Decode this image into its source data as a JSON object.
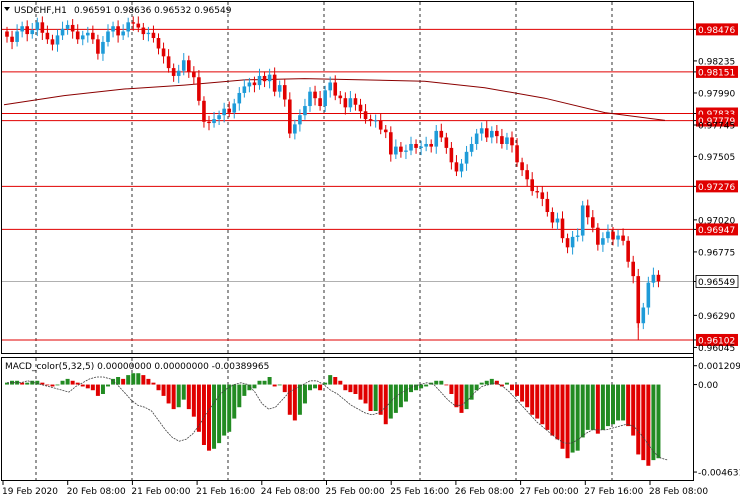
{
  "header": {
    "symbol": "USDCHF,H1",
    "ohlc": "0.96591 0.98636 0.96532 0.96549"
  },
  "macd_header": {
    "label": "MACD_color(5,32,5) 0.00000000 0.00000000 -0.00389965"
  },
  "colors": {
    "bull": "#1e9bd8",
    "bear": "#e00000",
    "hline": "#e00000",
    "ma": "#8b0000",
    "hist_up": "#228b22",
    "hist_down": "#e00000",
    "signal": "#404040",
    "grid": "#000000"
  },
  "chart_data": [
    {
      "type": "candlestick",
      "symbol": "USDCHF",
      "timeframe": "H1",
      "x_labels": [
        "19 Feb 2020",
        "20 Feb 08:00",
        "21 Feb 00:00",
        "21 Feb 16:00",
        "24 Feb 08:00",
        "25 Feb 00:00",
        "25 Feb 16:00",
        "26 Feb 08:00",
        "27 Feb 00:00",
        "27 Feb 16:00",
        "28 Feb 08:00"
      ],
      "y_ticks": [
        "0.98476",
        "0.98235",
        "0.98151",
        "0.97990",
        "0.97833",
        "0.97779",
        "0.97745",
        "0.97505",
        "0.97276",
        "0.97020",
        "0.96947",
        "0.96775",
        "0.96549",
        "0.96290",
        "0.96102",
        "0.96045"
      ],
      "ylim": [
        0.9601,
        0.9867
      ],
      "horizontal_levels": [
        {
          "value": 0.98476,
          "label": "0.98476"
        },
        {
          "value": 0.98151,
          "label": "0.98151"
        },
        {
          "value": 0.97833,
          "label": "0.97833"
        },
        {
          "value": 0.97779,
          "label": "0.97779"
        },
        {
          "value": 0.97276,
          "label": "0.97276"
        },
        {
          "value": 0.96947,
          "label": "0.96947"
        },
        {
          "value": 0.96102,
          "label": "0.96102"
        }
      ],
      "current_price": {
        "value": 0.96549,
        "label": "0.96549"
      },
      "closes": [
        0.9842,
        0.9838,
        0.9846,
        0.985,
        0.9844,
        0.9847,
        0.9853,
        0.9845,
        0.984,
        0.9836,
        0.9843,
        0.9848,
        0.9851,
        0.9846,
        0.984,
        0.9843,
        0.9845,
        0.984,
        0.9829,
        0.9838,
        0.9846,
        0.985,
        0.9843,
        0.9846,
        0.9853,
        0.9852,
        0.9849,
        0.9844,
        0.9845,
        0.9841,
        0.9833,
        0.9827,
        0.9818,
        0.9812,
        0.9816,
        0.9824,
        0.9815,
        0.9811,
        0.9793,
        0.9777,
        0.9776,
        0.9779,
        0.9782,
        0.9787,
        0.9784,
        0.9791,
        0.9799,
        0.9804,
        0.9807,
        0.9805,
        0.9812,
        0.9808,
        0.9813,
        0.98,
        0.9805,
        0.9794,
        0.9768,
        0.9775,
        0.9782,
        0.9789,
        0.98,
        0.9795,
        0.9789,
        0.9801,
        0.9807,
        0.9797,
        0.9795,
        0.9788,
        0.9795,
        0.979,
        0.9785,
        0.9779,
        0.9778,
        0.9778,
        0.9771,
        0.9769,
        0.9752,
        0.9758,
        0.9754,
        0.9755,
        0.976,
        0.9757,
        0.9758,
        0.976,
        0.9758,
        0.977,
        0.9765,
        0.9757,
        0.9746,
        0.9739,
        0.9745,
        0.9754,
        0.976,
        0.9768,
        0.9772,
        0.9765,
        0.977,
        0.9766,
        0.976,
        0.9765,
        0.9759,
        0.9746,
        0.974,
        0.9733,
        0.9724,
        0.9723,
        0.9718,
        0.9708,
        0.97,
        0.9703,
        0.9688,
        0.9681,
        0.9689,
        0.969,
        0.9713,
        0.9704,
        0.9696,
        0.9683,
        0.9688,
        0.9693,
        0.9687,
        0.969,
        0.9686,
        0.967,
        0.9659,
        0.9623,
        0.9635,
        0.9654,
        0.966,
        0.9655
      ],
      "ma_line": [
        0.979,
        0.9797,
        0.9802,
        0.9805,
        0.9809,
        0.981,
        0.9809,
        0.9808,
        0.9803,
        0.9795,
        0.9784,
        0.9778
      ]
    },
    {
      "type": "bar",
      "indicator": "MACD_color(5,32,5)",
      "values": [
        "0.00000000",
        "0.00000000",
        "-0.00389965"
      ],
      "y_ticks": [
        "0.0012096",
        "0.00",
        "-0.0046318"
      ],
      "ylim": [
        -0.005,
        0.0013
      ],
      "histogram": [
        0.0001,
        0.0002,
        0.0002,
        0.0001,
        0.0001,
        0.0002,
        0.0002,
        0.0001,
        0.0,
        -0.0001,
        0.0,
        0.0002,
        0.0003,
        0.0002,
        0.0001,
        -0.0001,
        -0.0002,
        -0.0003,
        -0.0006,
        -0.0005,
        -0.0001,
        0.0003,
        0.0004,
        0.0003,
        0.0005,
        0.0006,
        0.0006,
        0.0005,
        0.0003,
        0.0001,
        -0.0003,
        -0.0006,
        -0.001,
        -0.0013,
        -0.0012,
        -0.0008,
        -0.0013,
        -0.0017,
        -0.0025,
        -0.0032,
        -0.0035,
        -0.0034,
        -0.0031,
        -0.0027,
        -0.0025,
        -0.0018,
        -0.0012,
        -0.0006,
        -0.0003,
        -0.0002,
        0.0002,
        0.0002,
        0.0004,
        -0.0001,
        0.0,
        -0.0004,
        -0.0016,
        -0.0019,
        -0.0016,
        -0.001,
        -0.0003,
        -0.0002,
        -0.0003,
        0.0001,
        0.0005,
        0.0004,
        0.0002,
        -0.0003,
        -0.0004,
        -0.0005,
        -0.0008,
        -0.001,
        -0.0014,
        -0.0014,
        -0.0016,
        -0.0021,
        -0.0018,
        -0.0015,
        -0.0012,
        -0.0009,
        -0.0004,
        -0.0003,
        -0.0002,
        -0.0001,
        0.0001,
        0.0002,
        0.0002,
        0.0,
        -0.0005,
        -0.0012,
        -0.0015,
        -0.0013,
        -0.0008,
        -0.0003,
        0.0001,
        0.0002,
        0.0003,
        0.0002,
        -0.0001,
        0.0001,
        -0.0003,
        -0.0006,
        -0.0009,
        -0.0012,
        -0.0016,
        -0.0018,
        -0.0021,
        -0.0024,
        -0.0027,
        -0.0029,
        -0.0034,
        -0.0039,
        -0.0036,
        -0.0035,
        -0.0028,
        -0.0024,
        -0.0024,
        -0.0026,
        -0.0024,
        -0.0022,
        -0.0021,
        -0.0019,
        -0.0019,
        -0.0022,
        -0.0027,
        -0.0037,
        -0.004,
        -0.0043,
        -0.004,
        -0.0039
      ],
      "signal_line": [
        0.0001,
        0.0001,
        0.0001,
        0.0002,
        0.0001,
        0.0,
        -0.0001,
        -0.0002,
        -0.0003,
        -0.0004,
        -0.0001,
        0.0001,
        0.0003,
        0.0004,
        0.0004,
        0.0003,
        0.0,
        -0.0004,
        -0.0008,
        -0.0011,
        -0.0012,
        -0.0014,
        -0.0019,
        -0.0024,
        -0.0028,
        -0.003,
        -0.0029,
        -0.0026,
        -0.0021,
        -0.0015,
        -0.001,
        -0.0005,
        -0.0002,
        0.0,
        0.0001,
        0.0,
        -0.0004,
        -0.001,
        -0.0013,
        -0.0012,
        -0.0008,
        -0.0004,
        -0.0002,
        0.0,
        0.0002,
        0.0002,
        0.0,
        -0.0003,
        -0.0005,
        -0.0008,
        -0.0011,
        -0.0013,
        -0.0015,
        -0.0016,
        -0.0015,
        -0.0012,
        -0.0008,
        -0.0005,
        -0.0003,
        -0.0001,
        0.0,
        0.0001,
        0.0,
        -0.0004,
        -0.0008,
        -0.0011,
        -0.0011,
        -0.0008,
        -0.0004,
        -0.0001,
        0.0,
        0.0001,
        -0.0001,
        -0.0004,
        -0.0008,
        -0.0012,
        -0.0016,
        -0.002,
        -0.0023,
        -0.0026,
        -0.0029,
        -0.0031,
        -0.0031,
        -0.0029,
        -0.0026,
        -0.0024,
        -0.0024,
        -0.0024,
        -0.0023,
        -0.0022,
        -0.0021,
        -0.0022,
        -0.0026,
        -0.0031,
        -0.0036,
        -0.0039,
        -0.004
      ]
    }
  ]
}
